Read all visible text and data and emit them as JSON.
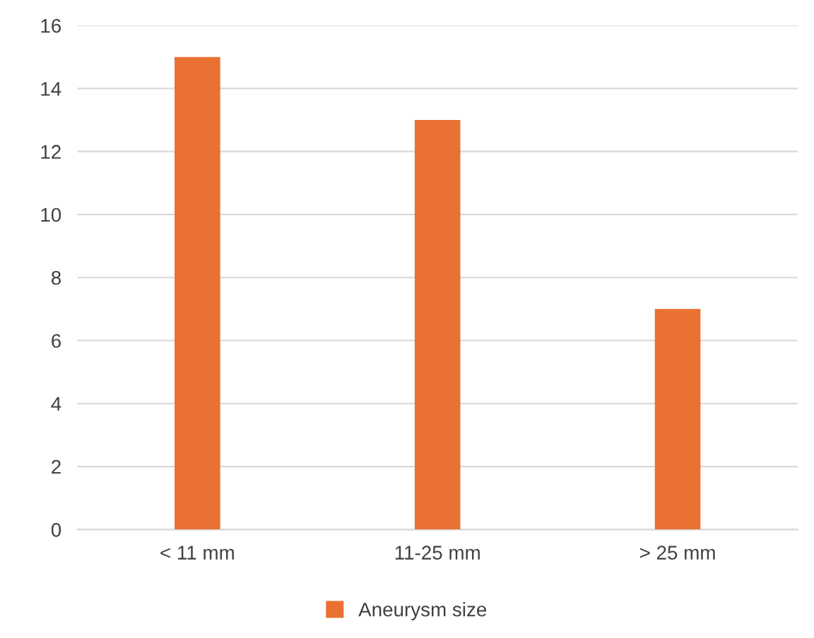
{
  "chart_data": {
    "type": "bar",
    "categories": [
      "< 11 mm",
      "11-25 mm",
      "> 25 mm"
    ],
    "series": [
      {
        "name": "Aneurysm size",
        "color": "#e97132",
        "values": [
          15,
          13,
          7
        ]
      }
    ],
    "ylim": [
      0,
      16
    ],
    "yticks": [
      0,
      2,
      4,
      6,
      8,
      10,
      12,
      14,
      16
    ],
    "grid": "y",
    "legend": "bottom"
  }
}
